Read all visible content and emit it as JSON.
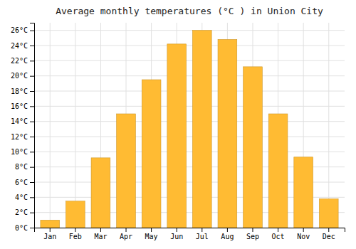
{
  "chart_data": {
    "type": "bar",
    "title": "Average monthly temperatures (°C ) in Union City",
    "categories": [
      "Jan",
      "Feb",
      "Mar",
      "Apr",
      "May",
      "Jun",
      "Jul",
      "Aug",
      "Sep",
      "Oct",
      "Nov",
      "Dec"
    ],
    "values": [
      1.0,
      3.5,
      9.2,
      15.0,
      19.5,
      24.2,
      26.0,
      24.8,
      21.2,
      15.0,
      9.3,
      3.8
    ],
    "color": "#FFBB33",
    "ylim": [
      0,
      27
    ],
    "yticks": [
      {
        "value": 0,
        "label": "0°C"
      },
      {
        "value": 2,
        "label": "2°C"
      },
      {
        "value": 4,
        "label": "4°C"
      },
      {
        "value": 6,
        "label": "6°C"
      },
      {
        "value": 8,
        "label": "8°C"
      },
      {
        "value": 10,
        "label": "10°C"
      },
      {
        "value": 12,
        "label": "12°C"
      },
      {
        "value": 14,
        "label": "14°C"
      },
      {
        "value": 16,
        "label": "16°C"
      },
      {
        "value": 18,
        "label": "18°C"
      },
      {
        "value": 20,
        "label": "20°C"
      },
      {
        "value": 22,
        "label": "22°C"
      },
      {
        "value": 24,
        "label": "24°C"
      },
      {
        "value": 26,
        "label": "26°C"
      }
    ],
    "grid": true
  }
}
